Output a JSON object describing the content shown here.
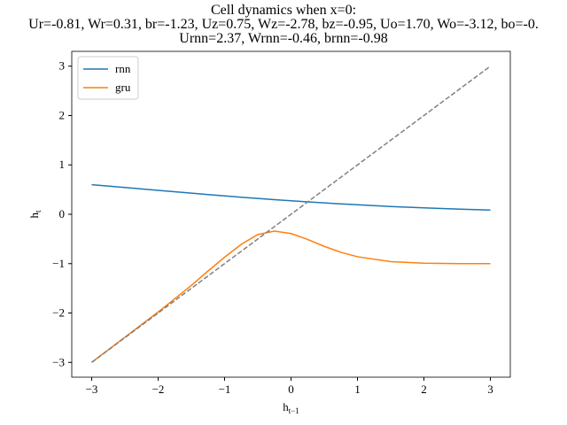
{
  "chart_data": {
    "type": "line",
    "title": [
      "Cell dynamics when x=0:",
      "Ur=-0.81, Wr=0.31, br=-1.23, Uz=0.75, Wz=-2.78, bz=-0.95, Uo=1.70, Wo=-3.12, bo=-0.",
      "Urnn=2.37, Wrnn=-0.46, brnn=-0.98"
    ],
    "xlabel": {
      "base": "h",
      "sub": "t−1"
    },
    "ylabel": {
      "base": "h",
      "sub": "t"
    },
    "x": [
      -3,
      -2.5,
      -2,
      -1.5,
      -1.25,
      -1,
      -0.75,
      -0.5,
      -0.25,
      0,
      0.25,
      0.5,
      0.75,
      1,
      1.5,
      2,
      2.5,
      3
    ],
    "series": [
      {
        "name": "rnn",
        "color": "#1f77b4",
        "dash": false,
        "values": [
          0.599,
          0.542,
          0.485,
          0.428,
          0.4,
          0.373,
          0.346,
          0.321,
          0.296,
          0.273,
          0.251,
          0.23,
          0.21,
          0.192,
          0.158,
          0.13,
          0.106,
          0.086
        ]
      },
      {
        "name": "gru",
        "color": "#ff7f0e",
        "dash": false,
        "values": [
          -3.0,
          -2.49,
          -1.98,
          -1.44,
          -1.15,
          -0.87,
          -0.61,
          -0.41,
          -0.34,
          -0.39,
          -0.51,
          -0.65,
          -0.77,
          -0.86,
          -0.96,
          -0.99,
          -1.0,
          -1.0
        ]
      },
      {
        "color": "#808080",
        "dash": true,
        "values": [
          -3,
          -2.5,
          -2,
          -1.5,
          -1.25,
          -1,
          -0.75,
          -0.5,
          -0.25,
          0,
          0.25,
          0.5,
          0.75,
          1,
          1.5,
          2,
          2.5,
          3
        ]
      }
    ],
    "xlim": [
      -3.3,
      3.3
    ],
    "ylim": [
      -3.3,
      3.3
    ],
    "xticks": [
      {
        "value": -3,
        "label": "−3"
      },
      {
        "value": -2,
        "label": "−2"
      },
      {
        "value": -1,
        "label": "−1"
      },
      0,
      1,
      2,
      3
    ],
    "yticks": [
      {
        "value": -3,
        "label": "−3"
      },
      {
        "value": -2,
        "label": "−2"
      },
      {
        "value": -1,
        "label": "−1"
      },
      0,
      1,
      2,
      3
    ],
    "legend": "upper-left",
    "grid": false
  }
}
